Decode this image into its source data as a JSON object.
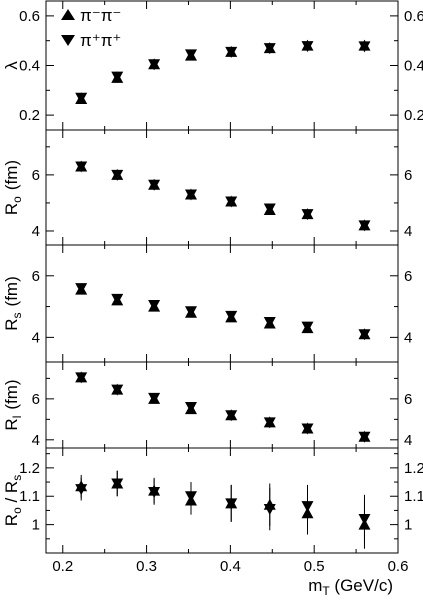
{
  "chart_data": [
    {
      "type": "scatter",
      "ylabel": "λ",
      "ylim": [
        0.14,
        0.66
      ],
      "yticks": [
        0.2,
        0.4,
        0.6
      ],
      "ytick_labels": [
        "0.2",
        "0.4",
        "0.6"
      ],
      "legend": {
        "placement": "top-left",
        "entries": [
          {
            "marker": "triangle-up",
            "text": "π⁻π⁻"
          },
          {
            "marker": "triangle-down",
            "text": "π⁺π⁺"
          }
        ]
      },
      "series": [
        {
          "name": "π⁻π⁻",
          "marker": "triangle-up",
          "x": [
            0.222,
            0.265,
            0.309,
            0.353,
            0.401,
            0.447,
            0.492,
            0.56
          ],
          "y": [
            0.265,
            0.35,
            0.405,
            0.44,
            0.455,
            0.47,
            0.48,
            0.48
          ],
          "yerr": [
            0.02,
            0.02,
            0.02,
            0.015,
            0.015,
            0.02,
            0.02,
            0.015
          ]
        },
        {
          "name": "π⁺π⁺",
          "marker": "triangle-down",
          "x": [
            0.222,
            0.265,
            0.309,
            0.353,
            0.401,
            0.447,
            0.492,
            0.56
          ],
          "y": [
            0.27,
            0.355,
            0.405,
            0.445,
            0.455,
            0.47,
            0.478,
            0.477
          ],
          "yerr": [
            0.02,
            0.02,
            0.02,
            0.015,
            0.015,
            0.02,
            0.02,
            0.015
          ]
        }
      ]
    },
    {
      "type": "scatter",
      "ylabel": "R",
      "ylabel_sub": "o",
      "ylabel_unit": "(fm)",
      "ylim": [
        3.5,
        7.6
      ],
      "yticks": [
        4,
        6
      ],
      "ytick_labels": [
        "4",
        "6"
      ],
      "series": [
        {
          "name": "π⁻π⁻",
          "marker": "triangle-up",
          "x": [
            0.222,
            0.265,
            0.309,
            0.353,
            0.401,
            0.447,
            0.492,
            0.56
          ],
          "y": [
            6.3,
            6.0,
            5.65,
            5.3,
            5.05,
            4.75,
            4.6,
            4.2
          ],
          "yerr": [
            0.12,
            0.12,
            0.12,
            0.12,
            0.12,
            0.12,
            0.15,
            0.15
          ]
        },
        {
          "name": "π⁺π⁺",
          "marker": "triangle-down",
          "x": [
            0.222,
            0.265,
            0.309,
            0.353,
            0.401,
            0.447,
            0.492,
            0.56
          ],
          "y": [
            6.3,
            6.0,
            5.65,
            5.3,
            5.05,
            4.8,
            4.6,
            4.2
          ],
          "yerr": [
            0.12,
            0.12,
            0.12,
            0.12,
            0.12,
            0.12,
            0.15,
            0.15
          ]
        }
      ]
    },
    {
      "type": "scatter",
      "ylabel": "R",
      "ylabel_sub": "s",
      "ylabel_unit": "(fm)",
      "ylim": [
        3.2,
        7.0
      ],
      "yticks": [
        4,
        6
      ],
      "ytick_labels": [
        "4",
        "6"
      ],
      "series": [
        {
          "name": "π⁻π⁻",
          "marker": "triangle-up",
          "x": [
            0.222,
            0.265,
            0.309,
            0.353,
            0.401,
            0.447,
            0.492,
            0.56
          ],
          "y": [
            5.55,
            5.2,
            5.0,
            4.8,
            4.65,
            4.45,
            4.3,
            4.1
          ],
          "yerr": [
            0.12,
            0.12,
            0.12,
            0.12,
            0.12,
            0.12,
            0.12,
            0.12
          ]
        },
        {
          "name": "π⁺π⁺",
          "marker": "triangle-down",
          "x": [
            0.222,
            0.265,
            0.309,
            0.353,
            0.401,
            0.447,
            0.492,
            0.56
          ],
          "y": [
            5.6,
            5.25,
            5.05,
            4.85,
            4.7,
            4.5,
            4.35,
            4.1
          ],
          "yerr": [
            0.12,
            0.12,
            0.12,
            0.12,
            0.12,
            0.12,
            0.12,
            0.12
          ]
        }
      ]
    },
    {
      "type": "scatter",
      "ylabel": "R",
      "ylabel_sub": "l",
      "ylabel_unit": "(fm)",
      "ylim": [
        3.6,
        7.8
      ],
      "yticks": [
        4,
        6
      ],
      "ytick_labels": [
        "4",
        "6"
      ],
      "series": [
        {
          "name": "π⁻π⁻",
          "marker": "triangle-up",
          "x": [
            0.222,
            0.265,
            0.309,
            0.353,
            0.401,
            0.447,
            0.492,
            0.56
          ],
          "y": [
            7.05,
            6.45,
            6.0,
            5.5,
            5.2,
            4.85,
            4.55,
            4.15
          ],
          "yerr": [
            0.12,
            0.12,
            0.12,
            0.12,
            0.12,
            0.12,
            0.12,
            0.12
          ]
        },
        {
          "name": "π⁺π⁺",
          "marker": "triangle-down",
          "x": [
            0.222,
            0.265,
            0.309,
            0.353,
            0.401,
            0.447,
            0.492,
            0.56
          ],
          "y": [
            7.05,
            6.45,
            6.05,
            5.6,
            5.2,
            4.85,
            4.55,
            4.15
          ],
          "yerr": [
            0.12,
            0.12,
            0.12,
            0.12,
            0.12,
            0.12,
            0.12,
            0.12
          ]
        }
      ]
    },
    {
      "type": "scatter",
      "ylabel": "R",
      "ylabel_sub": "o",
      "ylabel_mid": " / R",
      "ylabel_sub2": "s",
      "ylim": [
        0.9,
        1.27
      ],
      "yticks": [
        1.0,
        1.1,
        1.2
      ],
      "ytick_labels": [
        "1",
        "1.1",
        "1.2"
      ],
      "xlabel": "m",
      "xlabel_sub": "T",
      "xlabel_unit": " (GeV/c)",
      "xlim": [
        0.18,
        0.6
      ],
      "xticks": [
        0.2,
        0.3,
        0.4,
        0.5,
        0.6
      ],
      "xtick_labels": [
        "0.2",
        "0.3",
        "0.4",
        "0.5",
        "0.6"
      ],
      "series": [
        {
          "name": "π⁻π⁻",
          "marker": "triangle-up",
          "x": [
            0.222,
            0.265,
            0.309,
            0.353,
            0.401,
            0.447,
            0.492,
            0.56
          ],
          "y": [
            1.135,
            1.145,
            1.12,
            1.085,
            1.075,
            1.07,
            1.04,
            1.0
          ],
          "yerr": [
            0.04,
            0.045,
            0.045,
            0.05,
            0.065,
            0.075,
            0.075,
            0.085
          ]
        },
        {
          "name": "π⁺π⁺",
          "marker": "triangle-down",
          "x": [
            0.222,
            0.265,
            0.309,
            0.353,
            0.401,
            0.447,
            0.492,
            0.56
          ],
          "y": [
            1.125,
            1.145,
            1.115,
            1.1,
            1.075,
            1.055,
            1.065,
            1.02
          ],
          "yerr": [
            0.04,
            0.045,
            0.045,
            0.05,
            0.065,
            0.075,
            0.075,
            0.085
          ]
        }
      ]
    }
  ]
}
